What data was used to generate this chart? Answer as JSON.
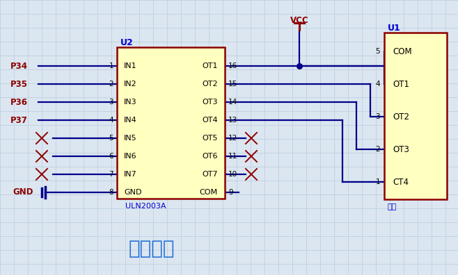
{
  "bg_color": "#dce6f0",
  "grid_color": "#b8cce0",
  "line_color": "#00008B",
  "red_color": "#8B0000",
  "chip_fill": "#FFFFC0",
  "chip_border": "#8B0000",
  "label_blue": "#0000CD",
  "title_color": "#1E6FD9",
  "title": "步进电机",
  "u2_label": "U2",
  "u2_sublabel": "ULN2003A",
  "u1_label": "U1",
  "u1_sublabel": "插座",
  "u2_inputs": [
    "IN1",
    "IN2",
    "IN3",
    "IN4",
    "IN5",
    "IN6",
    "IN7"
  ],
  "u2_outputs": [
    "OT1",
    "OT2",
    "OT3",
    "OT4",
    "OT5",
    "OT6",
    "OT7"
  ],
  "u1_pins": [
    "COM",
    "OT1",
    "OT2",
    "OT3",
    "CT4"
  ],
  "port_labels": [
    "P34",
    "P35",
    "P36",
    "P37"
  ],
  "vcc_label": "VCC",
  "gnd_label": "GND",
  "u2_left_pins": [
    "1",
    "2",
    "3",
    "4",
    "5",
    "6",
    "7",
    "8"
  ],
  "u2_right_pins": [
    "16",
    "15",
    "14",
    "13",
    "12",
    "11",
    "10",
    "9"
  ],
  "u1_left_pins": [
    "5",
    "4",
    "3",
    "2",
    "1"
  ]
}
